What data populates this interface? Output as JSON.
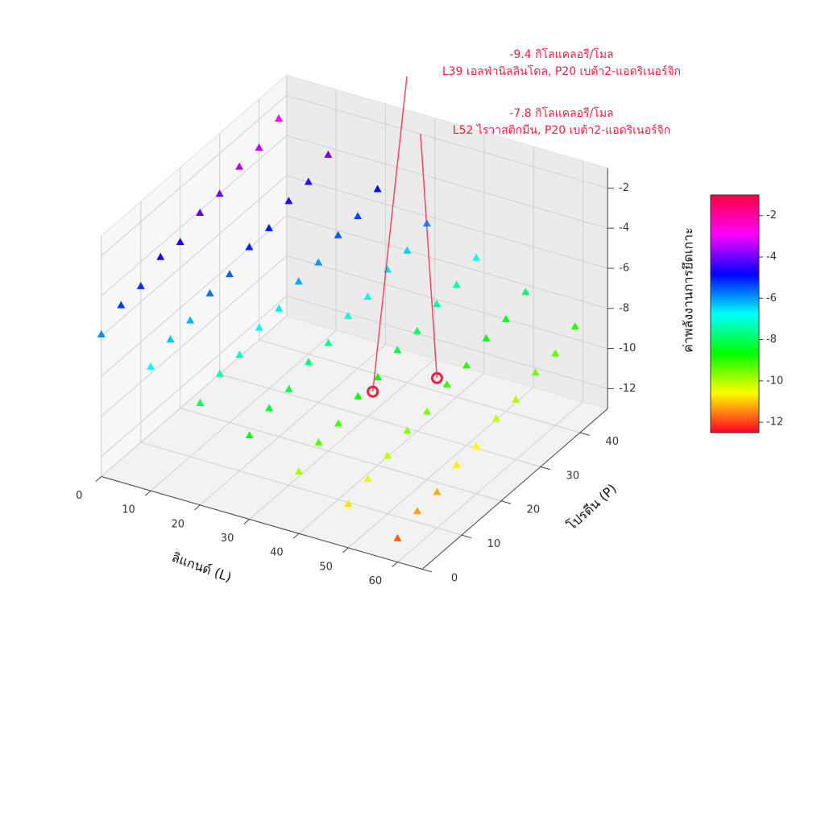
{
  "chart_data": {
    "type": "scatter3d",
    "x_label": "ลิแกนด์ (L)",
    "y_label": "โปรตีน (P)",
    "z_label": "ค่าพลังงานการยึดเกาะ",
    "xlim": [
      0,
      65
    ],
    "xticks": [
      0,
      10,
      20,
      30,
      40,
      50,
      60
    ],
    "ylim": [
      0,
      47
    ],
    "yticks": [
      0,
      10,
      20,
      30,
      40
    ],
    "zlim": [
      -13,
      -1
    ],
    "zticks": [
      -12,
      -10,
      -8,
      -6,
      -4,
      -2
    ],
    "clim": [
      -12.5,
      -1
    ],
    "cticks": [
      -12,
      -10,
      -8,
      -6,
      -4,
      -2
    ],
    "colormap": [
      "#ff0029",
      "#ffff00",
      "#00ff00",
      "#00ffff",
      "#0000ff",
      "#ff00ff",
      "#ff0040"
    ],
    "marker": "triangle",
    "grid": true,
    "x": [
      0,
      0,
      0,
      0,
      0,
      0,
      0,
      0,
      0,
      0,
      10,
      10,
      10,
      10,
      10,
      10,
      10,
      10,
      10,
      10,
      20,
      20,
      20,
      20,
      20,
      20,
      20,
      20,
      20,
      20,
      30,
      30,
      30,
      30,
      30,
      30,
      30,
      30,
      30,
      30,
      40,
      40,
      40,
      40,
      40,
      40,
      40,
      40,
      40,
      40,
      50,
      50,
      50,
      50,
      50,
      50,
      50,
      50,
      50,
      50,
      60,
      60,
      60,
      60,
      60,
      60,
      60,
      60,
      60,
      60
    ],
    "y": [
      0,
      5,
      10,
      15,
      20,
      25,
      30,
      35,
      40,
      45,
      0,
      5,
      10,
      15,
      20,
      25,
      30,
      35,
      40,
      45,
      0,
      5,
      10,
      15,
      20,
      25,
      30,
      35,
      40,
      45,
      0,
      5,
      10,
      15,
      20,
      25,
      30,
      35,
      40,
      45,
      0,
      5,
      10,
      15,
      20,
      25,
      30,
      35,
      40,
      45,
      0,
      5,
      10,
      15,
      20,
      25,
      30,
      35,
      40,
      45,
      0,
      5,
      10,
      15,
      20,
      25,
      30,
      35,
      40,
      45
    ],
    "values": [
      -5.9,
      -5.3,
      -5.2,
      -4.6,
      -4.7,
      -4.1,
      -4.0,
      -3.5,
      -3.4,
      -2.8,
      -6.8,
      -6.3,
      -6.2,
      -5.7,
      -5.6,
      -5.1,
      -5.0,
      -4.5,
      -4.4,
      -3.9,
      -7.9,
      -7.3,
      -7.2,
      -6.7,
      -6.6,
      -6.1,
      -6.0,
      -5.5,
      -5.4,
      -4.9,
      -8.8,
      -8.3,
      -8.2,
      -7.7,
      -7.6,
      -7.1,
      -7.0,
      -6.5,
      -6.4,
      -5.9,
      -9.9,
      -9.3,
      -9.2,
      -8.7,
      -8.6,
      -8.1,
      -8.0,
      -7.5,
      -7.4,
      -6.9,
      -10.8,
      -10.4,
      -10.1,
      -9.7,
      -9.6,
      -9.1,
      -9.0,
      -8.5,
      -8.4,
      -7.9,
      -11.8,
      -11.3,
      -11.2,
      -10.7,
      -10.6,
      -10.1,
      -10.0,
      -9.5,
      -9.4,
      -8.9
    ],
    "annotations": [
      {
        "x": 39,
        "y": 20,
        "z": -9.4,
        "color": "#ff1a3c",
        "text": [
          "-9.4 กิโลแคลอรี/โมล",
          "L39 เอลฟ่านิลลินโดล, P20 เบต้า2-แอดริเนอร์จิก"
        ]
      },
      {
        "x": 52,
        "y": 20,
        "z": -7.8,
        "color": "#ff1a3c",
        "text": [
          "-7.8 กิโลแคลอรี/โมล",
          "L52 ไรวาสติกมีน, P20 เบต้า2-แอดริเนอร์จิก"
        ]
      }
    ]
  }
}
